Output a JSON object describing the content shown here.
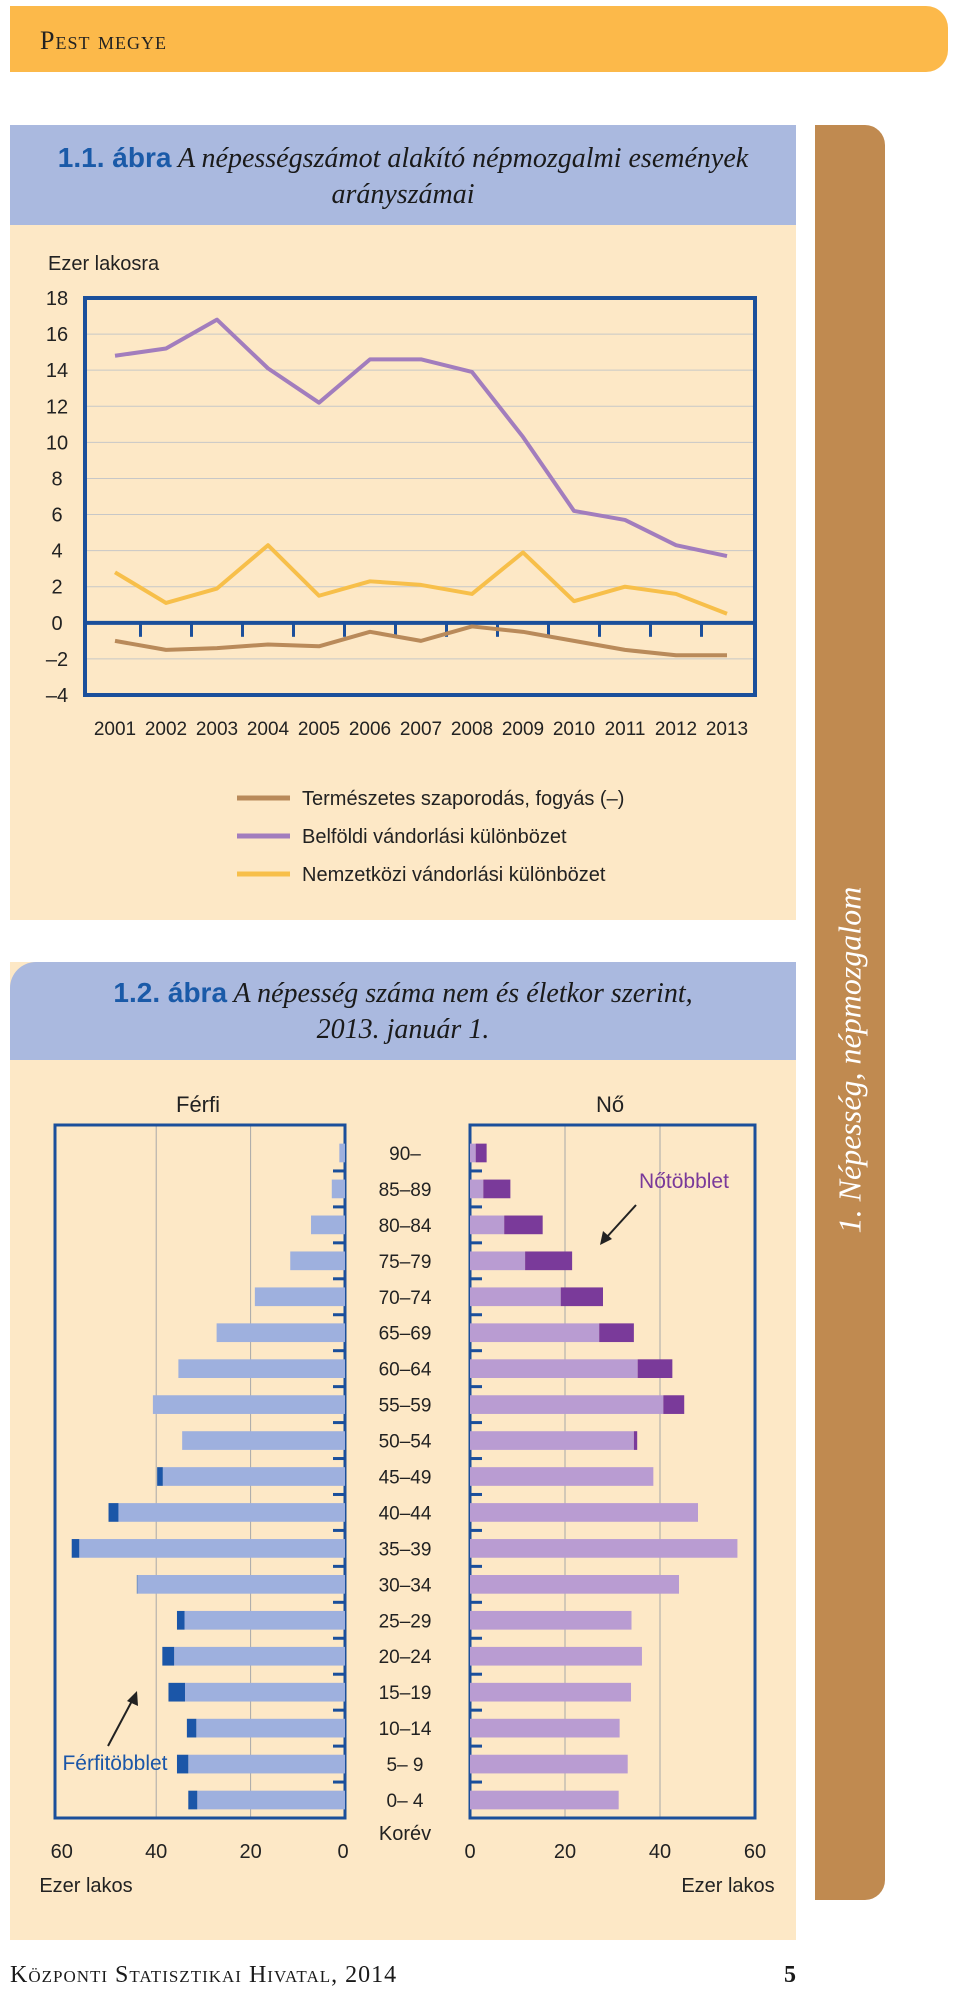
{
  "header": {
    "title": "Pest megye"
  },
  "side_tab": {
    "label": "1. Népesség, népmozgalom"
  },
  "footer": {
    "publisher": "Központi Statisztikai Hivatal, 2014",
    "page": "5"
  },
  "figure1": {
    "number": "1.1. ábra",
    "title_line1": "A népességszámot alakító népmozgalmi események",
    "title_line2": "arányszámai"
  },
  "figure2": {
    "number": "1.2. ábra",
    "title_line1": "A népesség száma nem és életkor szerint,",
    "title_line2": "2013. január 1."
  },
  "colors": {
    "natural": "#b98a5a",
    "domestic": "#a27dbd",
    "international": "#f7bf4a",
    "axis": "#1b4f9b",
    "male": "#9eb0de",
    "male_surplus": "#1b56a8",
    "female": "#b99cd2",
    "female_surplus": "#7a3a9a"
  },
  "chart_data": [
    {
      "type": "line",
      "ylabel": "Ezer lakosra",
      "ylim": [
        -4,
        18
      ],
      "yticks": [
        18,
        16,
        14,
        12,
        10,
        8,
        6,
        4,
        2,
        0,
        -2,
        -4
      ],
      "ytick_labels": [
        "18",
        "16",
        "14",
        "12",
        "10",
        "8",
        "6",
        "4",
        "2",
        "0",
        "–2",
        "–4"
      ],
      "x": [
        "2001",
        "2002",
        "2003",
        "2004",
        "2005",
        "2006",
        "2007",
        "2008",
        "2009",
        "2010",
        "2011",
        "2012",
        "2013"
      ],
      "grid": true,
      "legend_position": "bottom",
      "series": [
        {
          "name": "Természetes szaporodás, fogyás (–)",
          "values": [
            -1.0,
            -1.5,
            -1.4,
            -1.2,
            -1.3,
            -0.5,
            -1.0,
            -0.2,
            -0.5,
            -1.0,
            -1.5,
            -1.8,
            -1.8
          ]
        },
        {
          "name": "Belföldi vándorlási különbözet",
          "values": [
            14.8,
            15.2,
            16.8,
            14.1,
            12.2,
            14.6,
            14.6,
            13.9,
            10.3,
            6.2,
            5.7,
            4.3,
            3.7
          ]
        },
        {
          "name": "Nemzetközi vándorlási különbözet",
          "values": [
            2.8,
            1.1,
            1.9,
            4.3,
            1.5,
            2.3,
            2.1,
            1.6,
            3.9,
            1.2,
            2.0,
            1.6,
            0.5
          ]
        }
      ]
    },
    {
      "type": "bar",
      "subtype": "population-pyramid",
      "left_label": "Férfi",
      "right_label": "Nő",
      "center_label": "Korév",
      "xunit": "Ezer lakos",
      "xlim": [
        0,
        60
      ],
      "xticks": [
        0,
        20,
        40,
        60
      ],
      "male_surplus_label": "Férfitöbblet",
      "female_surplus_label": "Nőtöbblet",
      "categories": [
        "0– 4",
        "5– 9",
        "10–14",
        "15–19",
        "20–24",
        "25–29",
        "30–34",
        "35–39",
        "40–44",
        "45–49",
        "50–54",
        "55–59",
        "60–64",
        "65–69",
        "70–74",
        "75–79",
        "80–84",
        "85–89",
        "90–"
      ],
      "series": [
        {
          "name": "Férfi",
          "values": [
            33.2,
            35.6,
            33.5,
            37.4,
            38.7,
            35.6,
            44.1,
            57.9,
            50.1,
            39.8,
            34.5,
            40.7,
            35.3,
            27.2,
            19.1,
            11.6,
            7.2,
            2.8,
            1.2
          ]
        },
        {
          "name": "Nő",
          "values": [
            31.3,
            33.2,
            31.5,
            33.9,
            36.2,
            34.0,
            44.0,
            56.3,
            48.0,
            38.6,
            35.2,
            45.1,
            42.6,
            34.5,
            28.0,
            21.5,
            15.3,
            8.5,
            3.5
          ]
        }
      ]
    }
  ]
}
